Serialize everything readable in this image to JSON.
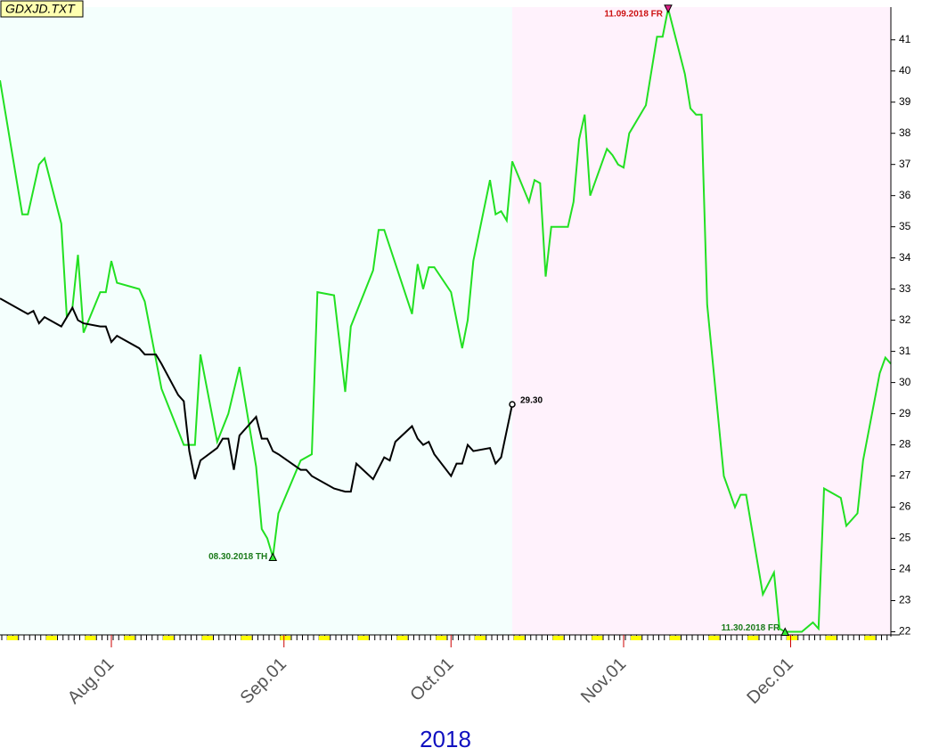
{
  "chart_data": {
    "type": "line",
    "title": "GDXJD.TXT",
    "x_label": "2018",
    "xlim": [
      "2018-07-12",
      "2018-12-19"
    ],
    "ylim": [
      21.9,
      42.05
    ],
    "yticks": [
      22,
      23,
      24,
      25,
      26,
      27,
      28,
      29,
      30,
      31,
      32,
      33,
      34,
      35,
      36,
      37,
      38,
      39,
      40,
      41
    ],
    "xticks": [
      {
        "value": "2018-08-01",
        "label": "Aug.01"
      },
      {
        "value": "2018-09-01",
        "label": "Sep.01"
      },
      {
        "value": "2018-10-01",
        "label": "Oct.01"
      },
      {
        "value": "2018-11-01",
        "label": "Nov.01"
      },
      {
        "value": "2018-12-01",
        "label": "Dec.01"
      }
    ],
    "background_colors": [
      "#f4fffd",
      "#fff2fc"
    ],
    "series": [
      {
        "color": "#22e022",
        "x": [
          "2018-07-12",
          "2018-07-16",
          "2018-07-17",
          "2018-07-19",
          "2018-07-20",
          "2018-07-23",
          "2018-07-24",
          "2018-07-25",
          "2018-07-26",
          "2018-07-27",
          "2018-07-30",
          "2018-07-31",
          "2018-08-01",
          "2018-08-02",
          "2018-08-06",
          "2018-08-07",
          "2018-08-10",
          "2018-08-14",
          "2018-08-16",
          "2018-08-17",
          "2018-08-20",
          "2018-08-22",
          "2018-08-24",
          "2018-08-27",
          "2018-08-28",
          "2018-08-29",
          "2018-08-30",
          "2018-08-31",
          "2018-09-04",
          "2018-09-06",
          "2018-09-07",
          "2018-09-10",
          "2018-09-12",
          "2018-09-13",
          "2018-09-17",
          "2018-09-18",
          "2018-09-19",
          "2018-09-24",
          "2018-09-25",
          "2018-09-26",
          "2018-09-27",
          "2018-09-28",
          "2018-10-01",
          "2018-10-03",
          "2018-10-04",
          "2018-10-05",
          "2018-10-08",
          "2018-10-09",
          "2018-10-10",
          "2018-10-11",
          "2018-10-12",
          "2018-10-15",
          "2018-10-16",
          "2018-10-17",
          "2018-10-18",
          "2018-10-19",
          "2018-10-22",
          "2018-10-23",
          "2018-10-24",
          "2018-10-25",
          "2018-10-26",
          "2018-10-29",
          "2018-10-30",
          "2018-10-31",
          "2018-11-01",
          "2018-11-02",
          "2018-11-05",
          "2018-11-07",
          "2018-11-08",
          "2018-11-09",
          "2018-11-12",
          "2018-11-13",
          "2018-11-14",
          "2018-11-15",
          "2018-11-16",
          "2018-11-19",
          "2018-11-21",
          "2018-11-22",
          "2018-11-23",
          "2018-11-26",
          "2018-11-28",
          "2018-11-29",
          "2018-11-30",
          "2018-12-03",
          "2018-12-05",
          "2018-12-06",
          "2018-12-07",
          "2018-12-10",
          "2018-12-11",
          "2018-12-13",
          "2018-12-14",
          "2018-12-17",
          "2018-12-18",
          "2018-12-19"
        ],
        "values": [
          39.7,
          35.4,
          35.4,
          37.0,
          37.2,
          35.1,
          32.1,
          32.4,
          34.1,
          31.6,
          32.9,
          32.9,
          33.9,
          33.2,
          33.0,
          32.6,
          29.8,
          28.0,
          28.0,
          30.9,
          28.1,
          29.0,
          30.5,
          27.3,
          25.3,
          25.0,
          24.4,
          25.8,
          27.5,
          27.7,
          32.9,
          32.8,
          29.7,
          31.8,
          33.6,
          34.9,
          34.9,
          32.2,
          33.8,
          33.0,
          33.7,
          33.7,
          32.9,
          31.1,
          32.0,
          33.9,
          36.5,
          35.4,
          35.5,
          35.2,
          37.1,
          35.8,
          36.5,
          36.4,
          33.4,
          35.0,
          35.0,
          35.8,
          37.8,
          38.6,
          36.0,
          37.5,
          37.3,
          37.0,
          36.9,
          38.0,
          38.9,
          41.1,
          41.1,
          42.0,
          39.9,
          38.8,
          38.6,
          38.6,
          32.5,
          27.0,
          26.0,
          26.4,
          26.4,
          23.2,
          23.9,
          22.1,
          22.0,
          22.0,
          22.3,
          22.1,
          26.6,
          26.3,
          25.4,
          25.8,
          27.5,
          30.3,
          30.8,
          30.6
        ]
      },
      {
        "color": "#000000",
        "x": [
          "2018-07-12",
          "2018-07-13",
          "2018-07-16",
          "2018-07-17",
          "2018-07-18",
          "2018-07-19",
          "2018-07-20",
          "2018-07-23",
          "2018-07-25",
          "2018-07-26",
          "2018-07-27",
          "2018-07-30",
          "2018-07-31",
          "2018-08-01",
          "2018-08-02",
          "2018-08-06",
          "2018-08-07",
          "2018-08-09",
          "2018-08-10",
          "2018-08-13",
          "2018-08-14",
          "2018-08-15",
          "2018-08-16",
          "2018-08-17",
          "2018-08-20",
          "2018-08-21",
          "2018-08-22",
          "2018-08-23",
          "2018-08-24",
          "2018-08-27",
          "2018-08-28",
          "2018-08-29",
          "2018-08-30",
          "2018-08-31",
          "2018-09-04",
          "2018-09-05",
          "2018-09-06",
          "2018-09-07",
          "2018-09-10",
          "2018-09-12",
          "2018-09-13",
          "2018-09-14",
          "2018-09-17",
          "2018-09-19",
          "2018-09-20",
          "2018-09-21",
          "2018-09-24",
          "2018-09-25",
          "2018-09-26",
          "2018-09-27",
          "2018-09-28",
          "2018-10-01",
          "2018-10-02",
          "2018-10-03",
          "2018-10-04",
          "2018-10-05",
          "2018-10-08",
          "2018-10-09",
          "2018-10-10",
          "2018-10-12"
        ],
        "values": [
          32.7,
          32.6,
          32.3,
          32.2,
          32.3,
          31.9,
          32.1,
          31.8,
          32.4,
          32.0,
          31.9,
          31.8,
          31.8,
          31.3,
          31.5,
          31.1,
          30.9,
          30.9,
          30.6,
          29.6,
          29.4,
          27.8,
          26.9,
          27.5,
          27.9,
          28.2,
          28.2,
          27.2,
          28.3,
          28.9,
          28.2,
          28.2,
          27.8,
          27.7,
          27.2,
          27.2,
          27.0,
          26.9,
          26.6,
          26.5,
          26.5,
          27.4,
          26.9,
          27.6,
          27.5,
          28.1,
          28.6,
          28.2,
          28.0,
          28.1,
          27.7,
          27.0,
          27.4,
          27.4,
          28.0,
          27.8,
          27.9,
          27.4,
          27.6,
          29.3
        ]
      }
    ],
    "annotations": [
      {
        "text": "08.30.2018 TH",
        "x": "2018-08-30",
        "y": 24.4,
        "color": "#1a7a1a",
        "marker": "up",
        "side": "left"
      },
      {
        "text": "11.09.2018 FR",
        "x": "2018-11-09",
        "y": 42.0,
        "color": "#cc1111",
        "marker": "down",
        "side": "left"
      },
      {
        "text": "11.30.2018 FR",
        "x": "2018-11-30",
        "y": 22.0,
        "color": "#1a7a1a",
        "marker": "up",
        "side": "left"
      },
      {
        "text": "29.30",
        "x": "2018-10-12",
        "y": 29.3,
        "color": "#000000",
        "marker": "circle",
        "side": "right"
      }
    ]
  }
}
